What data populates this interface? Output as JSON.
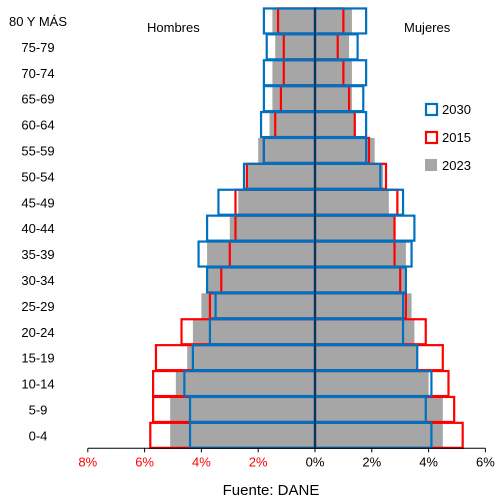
{
  "chart_data": {
    "type": "bar",
    "orientation": "horizontal-population-pyramid",
    "categories": [
      "80 Y MÁS",
      "75-79",
      "70-74",
      "65-69",
      "60-64",
      "55-59",
      "50-54",
      "45-49",
      "40-44",
      "35-39",
      "30-34",
      "25-29",
      "20-24",
      "15-19",
      "10-14",
      "5-9",
      "0-4"
    ],
    "left_label": "Hombres",
    "right_label": "Mujeres",
    "source": "Fuente: DANE",
    "x_ticks": [
      "8%",
      "6%",
      "4%",
      "2%",
      "0%",
      "2%",
      "4%",
      "6%"
    ],
    "xlim": [
      -8,
      6
    ],
    "series": [
      {
        "name": "2023",
        "color": "#a6a6a6",
        "style": "filled",
        "hombres": [
          1.5,
          1.4,
          1.5,
          1.5,
          1.6,
          2.0,
          2.4,
          2.7,
          3.0,
          3.8,
          3.8,
          4.0,
          4.3,
          4.5,
          4.9,
          5.1,
          5.1
        ],
        "mujeres": [
          1.3,
          1.2,
          1.3,
          1.3,
          1.4,
          2.1,
          2.4,
          2.6,
          2.8,
          3.2,
          3.2,
          3.4,
          3.5,
          3.6,
          4.0,
          4.5,
          4.5
        ]
      },
      {
        "name": "2015",
        "color": "#ff0000",
        "style": "outline",
        "hombres": [
          1.3,
          1.1,
          1.1,
          1.2,
          1.4,
          1.8,
          2.4,
          2.8,
          2.8,
          3.0,
          3.3,
          3.7,
          4.7,
          5.6,
          5.7,
          5.7,
          5.8
        ],
        "mujeres": [
          1.0,
          0.8,
          1.0,
          1.2,
          1.4,
          1.9,
          2.5,
          2.9,
          2.8,
          2.8,
          3.0,
          3.2,
          3.9,
          4.5,
          4.7,
          4.9,
          5.2
        ]
      },
      {
        "name": "2030",
        "color": "#0070c0",
        "style": "outline",
        "hombres": [
          1.8,
          1.7,
          1.8,
          1.8,
          1.9,
          1.8,
          2.5,
          3.4,
          3.8,
          4.1,
          3.8,
          3.5,
          3.7,
          4.3,
          4.6,
          4.4,
          4.4
        ],
        "mujeres": [
          1.8,
          1.5,
          1.8,
          1.7,
          1.8,
          1.8,
          2.3,
          3.1,
          3.5,
          3.4,
          3.2,
          3.1,
          3.1,
          3.6,
          4.1,
          3.9,
          4.1
        ]
      }
    ],
    "legend": [
      "2030",
      "2015",
      "2023"
    ],
    "legend_position": "right"
  }
}
